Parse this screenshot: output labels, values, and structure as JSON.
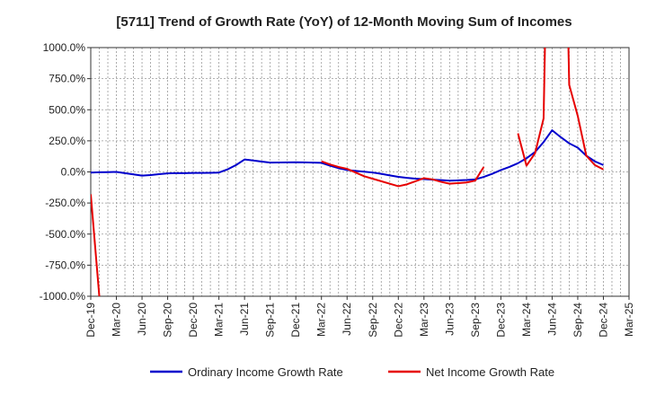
{
  "chart_data": {
    "type": "line",
    "title": "[5711]  Trend of Growth Rate (YoY) of 12-Month Moving Sum of Incomes",
    "xlabel": "",
    "ylabel": "",
    "x_tick_labels": [
      "Dec-19",
      "Mar-20",
      "Jun-20",
      "Sep-20",
      "Dec-20",
      "Mar-21",
      "Jun-21",
      "Sep-21",
      "Dec-21",
      "Mar-22",
      "Jun-22",
      "Sep-22",
      "Dec-22",
      "Mar-23",
      "Jun-23",
      "Sep-23",
      "Dec-23",
      "Mar-24",
      "Jun-24",
      "Sep-24",
      "Dec-24",
      "Mar-25"
    ],
    "y_tick_labels": [
      "1000.0%",
      "750.0%",
      "500.0%",
      "250.0%",
      "0.0%",
      "-250.0%",
      "-500.0%",
      "-750.0%",
      "-1000.0%"
    ],
    "y_ticks": [
      1000,
      750,
      500,
      250,
      0,
      -250,
      -500,
      -750,
      -1000
    ],
    "ylim": [
      -1000,
      1000
    ],
    "grid": true,
    "legend_position": "bottom",
    "series": [
      {
        "name": "Ordinary Income Growth Rate",
        "color": "#0000cc",
        "points": [
          {
            "x": "Dec-19",
            "y": -5
          },
          {
            "x": "Jan-20",
            "y": -3
          },
          {
            "x": "Feb-20",
            "y": -2
          },
          {
            "x": "Mar-20",
            "y": 0
          },
          {
            "x": "Apr-20",
            "y": -10
          },
          {
            "x": "May-20",
            "y": -20
          },
          {
            "x": "Jun-20",
            "y": -30
          },
          {
            "x": "Jul-20",
            "y": -25
          },
          {
            "x": "Aug-20",
            "y": -18
          },
          {
            "x": "Sep-20",
            "y": -12
          },
          {
            "x": "Oct-20",
            "y": -10
          },
          {
            "x": "Nov-20",
            "y": -10
          },
          {
            "x": "Dec-20",
            "y": -8
          },
          {
            "x": "Jan-21",
            "y": -8
          },
          {
            "x": "Feb-21",
            "y": -7
          },
          {
            "x": "Mar-21",
            "y": -5
          },
          {
            "x": "Apr-21",
            "y": 20
          },
          {
            "x": "May-21",
            "y": 55
          },
          {
            "x": "Jun-21",
            "y": 100
          },
          {
            "x": "Jul-21",
            "y": 92
          },
          {
            "x": "Aug-21",
            "y": 83
          },
          {
            "x": "Sep-21",
            "y": 75
          },
          {
            "x": "Oct-21",
            "y": 76
          },
          {
            "x": "Nov-21",
            "y": 77
          },
          {
            "x": "Dec-21",
            "y": 78
          },
          {
            "x": "Jan-22",
            "y": 77
          },
          {
            "x": "Feb-22",
            "y": 75
          },
          {
            "x": "Mar-22",
            "y": 73
          },
          {
            "x": "Apr-22",
            "y": 50
          },
          {
            "x": "May-22",
            "y": 30
          },
          {
            "x": "Jun-22",
            "y": 15
          },
          {
            "x": "Jul-22",
            "y": 8
          },
          {
            "x": "Aug-22",
            "y": 2
          },
          {
            "x": "Sep-22",
            "y": -5
          },
          {
            "x": "Oct-22",
            "y": -15
          },
          {
            "x": "Nov-22",
            "y": -28
          },
          {
            "x": "Dec-22",
            "y": -40
          },
          {
            "x": "Jan-23",
            "y": -48
          },
          {
            "x": "Feb-23",
            "y": -54
          },
          {
            "x": "Mar-23",
            "y": -58
          },
          {
            "x": "Apr-23",
            "y": -62
          },
          {
            "x": "May-23",
            "y": -66
          },
          {
            "x": "Jun-23",
            "y": -70
          },
          {
            "x": "Jul-23",
            "y": -68
          },
          {
            "x": "Aug-23",
            "y": -65
          },
          {
            "x": "Sep-23",
            "y": -60
          },
          {
            "x": "Oct-23",
            "y": -40
          },
          {
            "x": "Nov-23",
            "y": -15
          },
          {
            "x": "Dec-23",
            "y": 15
          },
          {
            "x": "Jan-24",
            "y": 40
          },
          {
            "x": "Feb-24",
            "y": 70
          },
          {
            "x": "Mar-24",
            "y": 110
          },
          {
            "x": "Apr-24",
            "y": 160
          },
          {
            "x": "May-24",
            "y": 240
          },
          {
            "x": "Jun-24",
            "y": 335
          },
          {
            "x": "Jul-24",
            "y": 280
          },
          {
            "x": "Aug-24",
            "y": 230
          },
          {
            "x": "Sep-24",
            "y": 195
          },
          {
            "x": "Oct-24",
            "y": 130
          },
          {
            "x": "Nov-24",
            "y": 85
          },
          {
            "x": "Dec-24",
            "y": 55
          }
        ]
      },
      {
        "name": "Net Income Growth Rate",
        "color": "#e60000",
        "segments": [
          [
            {
              "x": "Dec-19",
              "y": -180
            },
            {
              "x": "Jan-20",
              "y": -1000
            }
          ],
          [
            {
              "x": "Mar-22",
              "y": 85
            },
            {
              "x": "Apr-22",
              "y": 60
            },
            {
              "x": "May-22",
              "y": 40
            },
            {
              "x": "Jun-22",
              "y": 25
            },
            {
              "x": "Jul-22",
              "y": -5
            },
            {
              "x": "Aug-22",
              "y": -35
            },
            {
              "x": "Sep-22",
              "y": -55
            },
            {
              "x": "Oct-22",
              "y": -75
            },
            {
              "x": "Nov-22",
              "y": -95
            },
            {
              "x": "Dec-22",
              "y": -115
            },
            {
              "x": "Jan-23",
              "y": -100
            },
            {
              "x": "Feb-23",
              "y": -75
            },
            {
              "x": "Mar-23",
              "y": -50
            },
            {
              "x": "Apr-23",
              "y": -60
            },
            {
              "x": "May-23",
              "y": -80
            },
            {
              "x": "Jun-23",
              "y": -95
            },
            {
              "x": "Jul-23",
              "y": -90
            },
            {
              "x": "Aug-23",
              "y": -85
            },
            {
              "x": "Sep-23",
              "y": -70
            },
            {
              "x": "Oct-23",
              "y": 40
            }
          ],
          [
            {
              "x": "Feb-24",
              "y": 310
            },
            {
              "x": "Mar-24",
              "y": 50
            },
            {
              "x": "Apr-24",
              "y": 150
            },
            {
              "x": "May-24",
              "y": 430
            },
            {
              "x": "Jun-24",
              "y": 4000
            },
            {
              "x": "Jul-24",
              "y": 4000
            },
            {
              "x": "Aug-24",
              "y": 700
            },
            {
              "x": "Sep-24",
              "y": 450
            },
            {
              "x": "Oct-24",
              "y": 130
            },
            {
              "x": "Nov-24",
              "y": 55
            },
            {
              "x": "Dec-24",
              "y": 20
            }
          ]
        ]
      }
    ]
  }
}
